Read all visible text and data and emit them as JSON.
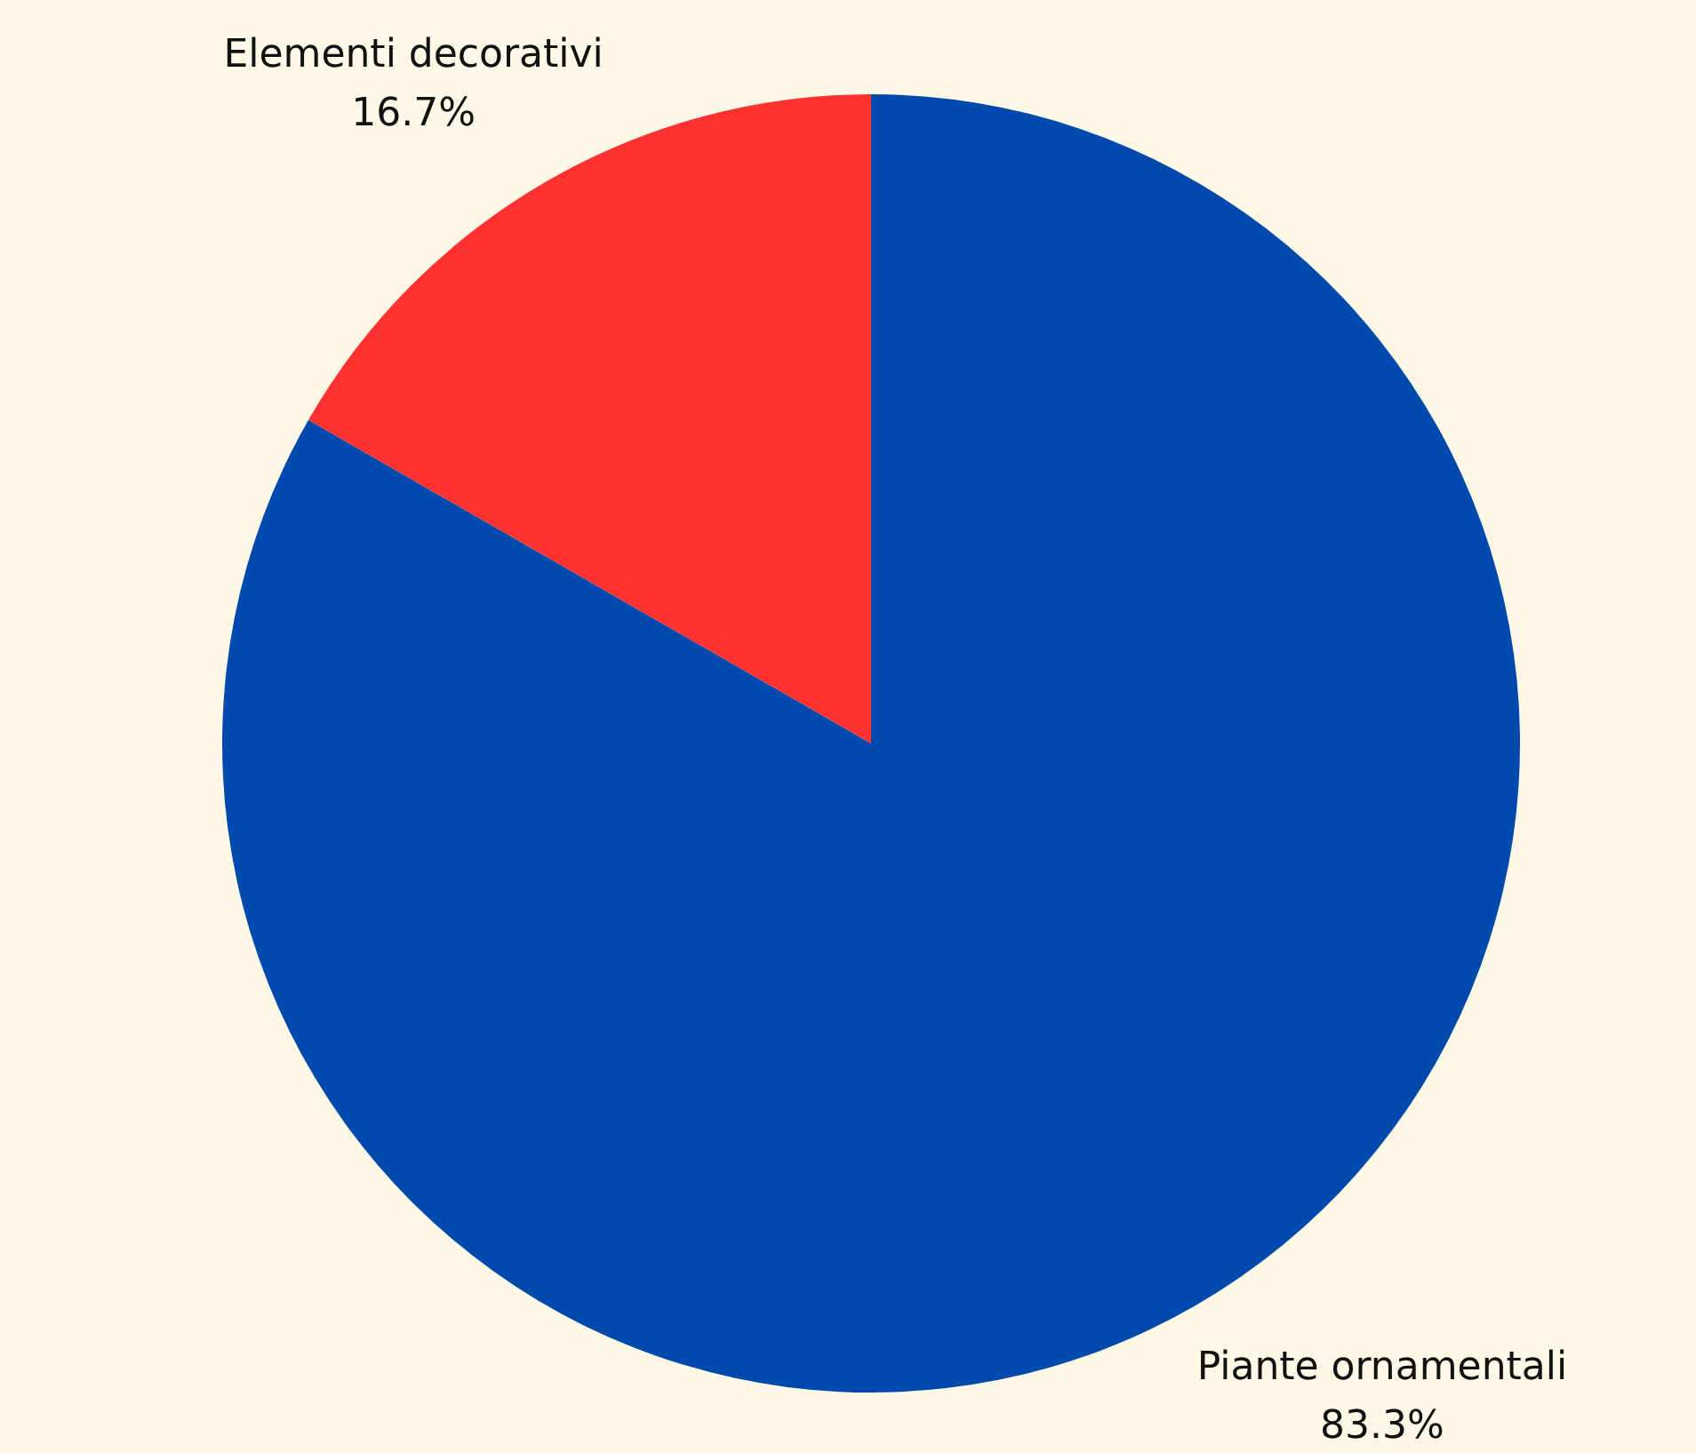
{
  "chart_data": {
    "type": "pie",
    "categories": [
      "Piante ornamentali",
      "Elementi decorativi"
    ],
    "values": [
      83.3,
      16.7
    ],
    "colors": [
      "#004aad",
      "#ff3131"
    ],
    "value_labels": [
      "83.3%",
      "16.7%"
    ],
    "legend": false
  }
}
